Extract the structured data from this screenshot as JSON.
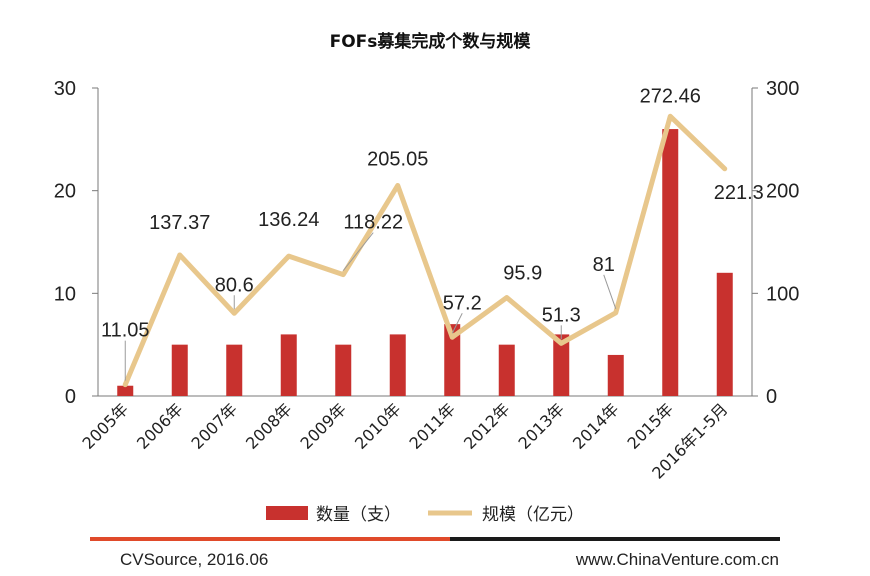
{
  "chart_data": {
    "type": "bar+line",
    "title": "FOFs募集完成个数与规模",
    "categories": [
      "2005年",
      "2006年",
      "2007年",
      "2008年",
      "2009年",
      "2010年",
      "2011年",
      "2012年",
      "2013年",
      "2014年",
      "2015年",
      "2016年1-5月"
    ],
    "series": [
      {
        "name": "数量（支）",
        "type": "bar",
        "axis": "left",
        "color": "#c8312e",
        "values": [
          1,
          5,
          5,
          6,
          5,
          6,
          7,
          5,
          6,
          4,
          26,
          12
        ]
      },
      {
        "name": "规模（亿元）",
        "type": "line",
        "axis": "right",
        "color": "#e8c78c",
        "values": [
          11.05,
          137.37,
          80.6,
          136.24,
          118.22,
          205.05,
          57.2,
          95.9,
          51.3,
          81,
          272.46,
          221.3
        ],
        "labels": [
          "11.05",
          "137.37",
          "80.6",
          "136.24",
          "118.22",
          "205.05",
          "57.2",
          "95.9",
          "51.3",
          "81",
          "272.46",
          "221.3"
        ]
      }
    ],
    "y_left": {
      "lim": [
        0,
        30
      ],
      "ticks": [
        "0",
        "10",
        "20",
        "30"
      ]
    },
    "y_right": {
      "lim": [
        0,
        300
      ],
      "ticks": [
        "0",
        "100",
        "200",
        "300"
      ]
    },
    "legend_position": "bottom",
    "grid": false
  },
  "footer": {
    "source": "CVSource, 2016.06",
    "website": "www.ChinaVenture.com.cn",
    "colors": {
      "left_bar": "#e04a2a",
      "right_bar": "#1a1a1a"
    }
  }
}
